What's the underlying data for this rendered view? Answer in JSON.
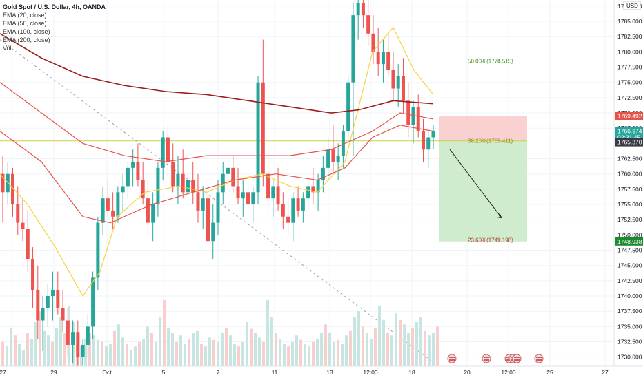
{
  "header": {
    "symbol_title": "Gold Spot / U.S. Dollar, 4h, OANDA",
    "currency": "USD"
  },
  "legend": {
    "items": [
      {
        "label": "EMA (20, close)",
        "color": "#f5d33c"
      },
      {
        "label": "EMA (50, close)",
        "color": "#e5534b"
      },
      {
        "label": "EMA (100, close)",
        "color": "#e5534b"
      },
      {
        "label": "EMA (200, close)",
        "color": "#9c1d1d"
      },
      {
        "label": "Vol",
        "color": "#333333"
      }
    ]
  },
  "colors": {
    "up": "#26a69a",
    "down": "#ef5350",
    "vol_up": "#c8e6e1",
    "vol_down": "#f8cfcd",
    "fib": "#8bc34a",
    "fib_red": "#e5534b",
    "stop_zone": "#f9c9c9",
    "target_zone": "#c8e9c6",
    "ema20": "#f5d33c",
    "ema50": "#e5534b",
    "ema100": "#e5534b",
    "ema200": "#9c1d1d"
  },
  "price_axis": {
    "ticks": [
      "1787.500",
      "1785.000",
      "1782.500",
      "1780.000",
      "1777.500",
      "1775.000",
      "1772.500",
      "1770.000",
      "1767.500",
      "1762.500",
      "1760.000",
      "1757.500",
      "1755.000",
      "1752.500",
      "1750.000",
      "1747.500",
      "1745.000",
      "1742.500",
      "1740.000",
      "1737.500",
      "1735.000",
      "1732.500",
      "1730.000"
    ],
    "tick_values": [
      1787.5,
      1785,
      1782.5,
      1780,
      1777.5,
      1775,
      1772.5,
      1770,
      1767.5,
      1762.5,
      1760,
      1757.5,
      1755,
      1752.5,
      1750,
      1747.5,
      1745,
      1742.5,
      1740,
      1737.5,
      1735,
      1732.5,
      1730
    ],
    "price_min": 1728.5,
    "price_max": 1788.5,
    "labels": [
      {
        "text": "1769.492",
        "value": 1769.492,
        "bg": "#e5534b",
        "fg": "#ffffff"
      },
      {
        "text": "1766.974",
        "value": 1767.0,
        "bg": "#26a69a",
        "fg": "#ffffff"
      },
      {
        "text": "02:31:45",
        "value": 1766.0,
        "bg": "#26a69a",
        "fg": "#ffffff"
      },
      {
        "text": "1765.370",
        "value": 1765.2,
        "bg": "#363a45",
        "fg": "#ffffff"
      },
      {
        "text": "1748.938",
        "value": 1748.938,
        "bg": "#1b8a2f",
        "fg": "#ffffff"
      }
    ]
  },
  "time_axis": {
    "labels": [
      "27",
      "29",
      "Oct",
      "5",
      "7",
      "11",
      "13",
      "12:00",
      "18",
      "20",
      "12:00",
      "25",
      "27"
    ]
  },
  "fib_levels": [
    {
      "label": "50.00%(1778.515)",
      "value": 1778.515,
      "color": "#8bc34a"
    },
    {
      "label": "38.20%(1765.411)",
      "value": 1765.411,
      "color": "#c6d44c"
    },
    {
      "label": "23.60%(1749.198)",
      "value": 1749.198,
      "color": "#e5534b"
    }
  ],
  "position": {
    "entry": 1765.411,
    "stop": 1769.492,
    "target": 1748.938
  },
  "event_markers": [
    "US",
    "US",
    "US",
    "US",
    "US",
    "US"
  ]
}
